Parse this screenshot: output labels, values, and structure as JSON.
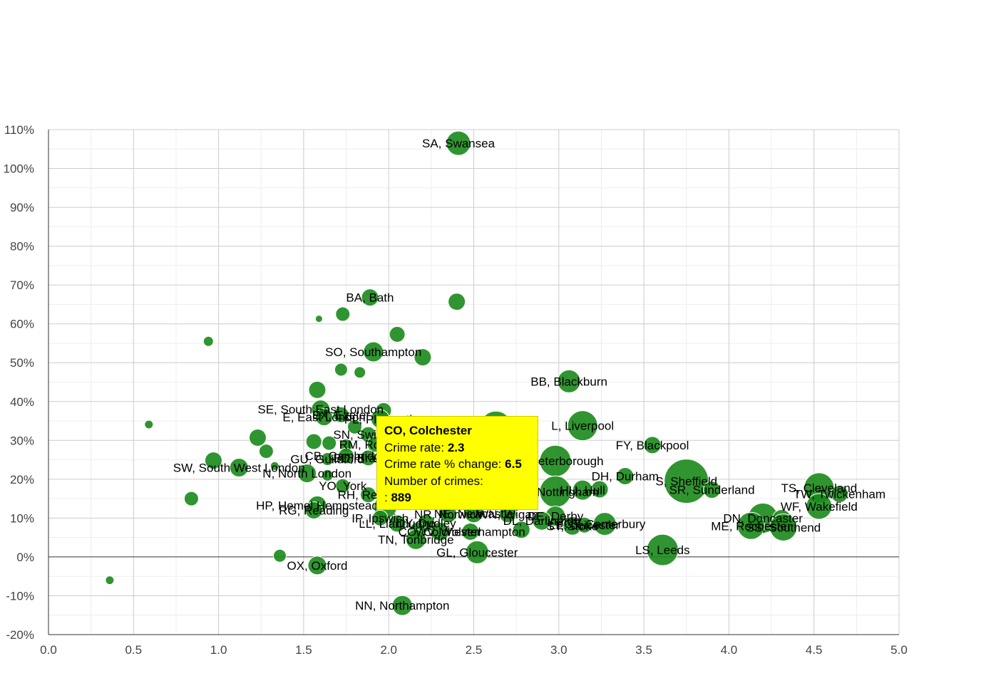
{
  "colors": {
    "bubble": "#1a8a1a",
    "tooltip_bg": "#ffff00",
    "grid": "#cccccc",
    "grid_minor": "#eeeeee",
    "zero_line": "#333333"
  },
  "tooltip": {
    "title": "CO, Colchester",
    "crime_rate_label": "Crime rate:",
    "crime_rate_value": "2.3",
    "change_label": "Crime rate % change:",
    "change_value": "6.5",
    "count_label": "Number of crimes:",
    "count_prefix": ":",
    "count_value": "889"
  },
  "chart_data": {
    "type": "scatter",
    "xlim": [
      0,
      5
    ],
    "ylim": [
      -20,
      110
    ],
    "x_ticks": [
      "0.0",
      "0.5",
      "1.0",
      "1.5",
      "2.0",
      "2.5",
      "3.0",
      "3.5",
      "4.0",
      "4.5",
      "5.0"
    ],
    "y_ticks": [
      "-20%",
      "-10%",
      "0%",
      "10%",
      "20%",
      "30%",
      "40%",
      "50%",
      "60%",
      "70%",
      "80%",
      "90%",
      "100%",
      "110%"
    ],
    "grid": true,
    "points": [
      {
        "label": "SA, Swansea",
        "x": 2.41,
        "y": 106.5,
        "r": 17
      },
      {
        "label": "BA, Bath",
        "x": 1.89,
        "y": 66.8,
        "r": 12
      },
      {
        "label": "",
        "x": 2.4,
        "y": 65.7,
        "r": 12
      },
      {
        "label": "",
        "x": 1.59,
        "y": 61.3,
        "r": 5
      },
      {
        "label": "",
        "x": 1.73,
        "y": 62.5,
        "r": 10
      },
      {
        "label": "",
        "x": 2.05,
        "y": 57.3,
        "r": 11
      },
      {
        "label": "",
        "x": 0.94,
        "y": 55.5,
        "r": 7
      },
      {
        "label": "SO, Southampton",
        "x": 1.91,
        "y": 52.8,
        "r": 14
      },
      {
        "label": "",
        "x": 2.2,
        "y": 51.4,
        "r": 12
      },
      {
        "label": "",
        "x": 1.72,
        "y": 48.2,
        "r": 9
      },
      {
        "label": "",
        "x": 1.83,
        "y": 47.5,
        "r": 8
      },
      {
        "label": "BB, Blackburn",
        "x": 3.06,
        "y": 45.2,
        "r": 16
      },
      {
        "label": "",
        "x": 1.58,
        "y": 43.0,
        "r": 12
      },
      {
        "label": "",
        "x": 1.97,
        "y": 37.7,
        "r": 11
      },
      {
        "label": "SE, South East London",
        "x": 1.6,
        "y": 38.0,
        "r": 13
      },
      {
        "label": "E, East London",
        "x": 1.62,
        "y": 36.0,
        "r": 12
      },
      {
        "label": "EX, Exeter",
        "x": 1.72,
        "y": 36.6,
        "r": 11
      },
      {
        "label": "PL, Plymouth",
        "x": 1.95,
        "y": 35.5,
        "r": 13
      },
      {
        "label": "",
        "x": 2.63,
        "y": 33.5,
        "r": 22
      },
      {
        "label": "L, Liverpool",
        "x": 3.14,
        "y": 33.8,
        "r": 21
      },
      {
        "label": "",
        "x": 0.59,
        "y": 34.1,
        "r": 6
      },
      {
        "label": "",
        "x": 1.8,
        "y": 33.5,
        "r": 10
      },
      {
        "label": "SN, Swindon",
        "x": 1.88,
        "y": 31.5,
        "r": 11
      },
      {
        "label": "",
        "x": 1.23,
        "y": 30.7,
        "r": 12
      },
      {
        "label": "",
        "x": 1.56,
        "y": 29.7,
        "r": 11
      },
      {
        "label": "",
        "x": 1.65,
        "y": 29.3,
        "r": 10
      },
      {
        "label": "RM, Romford",
        "x": 1.92,
        "y": 29.0,
        "r": 11
      },
      {
        "label": "",
        "x": 1.75,
        "y": 28.7,
        "r": 9
      },
      {
        "label": "FY, Blackpool",
        "x": 3.55,
        "y": 28.8,
        "r": 12
      },
      {
        "label": "",
        "x": 1.28,
        "y": 27.2,
        "r": 10
      },
      {
        "label": "GU, Guildford",
        "x": 1.64,
        "y": 25.2,
        "r": 9
      },
      {
        "label": "CB, Cambridge",
        "x": 1.75,
        "y": 26.0,
        "r": 11
      },
      {
        "label": "BD, Bradford",
        "x": 1.88,
        "y": 25.5,
        "r": 11
      },
      {
        "label": "",
        "x": 0.97,
        "y": 24.8,
        "r": 12
      },
      {
        "label": "PE, Peterborough",
        "x": 2.98,
        "y": 24.7,
        "r": 22
      },
      {
        "label": "SW, South West London",
        "x": 1.12,
        "y": 23.0,
        "r": 13
      },
      {
        "label": "",
        "x": 1.33,
        "y": 23.4,
        "r": 6
      },
      {
        "label": "N, North London",
        "x": 1.52,
        "y": 21.5,
        "r": 13
      },
      {
        "label": "",
        "x": 1.64,
        "y": 21.0,
        "r": 8
      },
      {
        "label": "DH, Durham",
        "x": 3.39,
        "y": 20.8,
        "r": 12
      },
      {
        "label": "S, Sheffield",
        "x": 3.75,
        "y": 19.5,
        "r": 31
      },
      {
        "label": "YO, York",
        "x": 1.73,
        "y": 18.3,
        "r": 10
      },
      {
        "label": "",
        "x": 3.24,
        "y": 17.4,
        "r": 12
      },
      {
        "label": "HU, Hull",
        "x": 3.14,
        "y": 17.2,
        "r": 14
      },
      {
        "label": "SR, Sunderland",
        "x": 3.9,
        "y": 17.3,
        "r": 12
      },
      {
        "label": "NG, Nottingham",
        "x": 2.98,
        "y": 16.8,
        "r": 22
      },
      {
        "label": "TS, Cleveland",
        "x": 4.53,
        "y": 17.8,
        "r": 21
      },
      {
        "label": "TW, Twickenham",
        "x": 4.65,
        "y": 16.2,
        "r": 12
      },
      {
        "label": "RH, Redhill",
        "x": 1.88,
        "y": 16.0,
        "r": 11
      },
      {
        "label": "",
        "x": 0.84,
        "y": 15.0,
        "r": 10
      },
      {
        "label": "WF, Wakefield",
        "x": 4.53,
        "y": 13.0,
        "r": 18
      },
      {
        "label": "HP, Hemel Hempstead",
        "x": 1.58,
        "y": 13.3,
        "r": 13
      },
      {
        "label": "RG, Reading",
        "x": 1.56,
        "y": 12.0,
        "r": 12
      },
      {
        "label": "",
        "x": 1.98,
        "y": 12.8,
        "r": 16
      },
      {
        "label": "NR, Norwich",
        "x": 2.35,
        "y": 11.0,
        "r": 12
      },
      {
        "label": "NE, Newcastle",
        "x": 2.5,
        "y": 11.2,
        "r": 13
      },
      {
        "label": "WN, Wigan",
        "x": 2.7,
        "y": 11.0,
        "r": 12
      },
      {
        "label": "DE, Derby",
        "x": 2.98,
        "y": 10.5,
        "r": 14
      },
      {
        "label": "IP, Ipswich",
        "x": 1.95,
        "y": 10.0,
        "r": 11
      },
      {
        "label": "DN, Doncaster",
        "x": 4.2,
        "y": 10.0,
        "r": 21
      },
      {
        "label": "",
        "x": 4.31,
        "y": 9.8,
        "r": 13
      },
      {
        "label": "DL, Darlington",
        "x": 2.9,
        "y": 9.3,
        "r": 13
      },
      {
        "label": "LL, Llandudno",
        "x": 2.05,
        "y": 8.6,
        "r": 12
      },
      {
        "label": "DY, Dudley",
        "x": 2.22,
        "y": 8.7,
        "r": 12
      },
      {
        "label": "ME, Rochester",
        "x": 4.13,
        "y": 8.0,
        "r": 19
      },
      {
        "label": "SS, Southend",
        "x": 4.32,
        "y": 7.6,
        "r": 19
      },
      {
        "label": "ST, Stoke",
        "x": 3.08,
        "y": 8.0,
        "r": 13
      },
      {
        "label": "LE, Leicester",
        "x": 3.15,
        "y": 8.2,
        "r": 11
      },
      {
        "label": "CT, Canterbury",
        "x": 3.27,
        "y": 8.5,
        "r": 16
      },
      {
        "label": "WV, Wolverhampton",
        "x": 2.48,
        "y": 6.5,
        "r": 12
      },
      {
        "label": "",
        "x": 2.78,
        "y": 7.0,
        "r": 12
      },
      {
        "label": "CO, Colchester",
        "x": 2.3,
        "y": 6.5,
        "r": 13
      },
      {
        "label": "",
        "x": 2.17,
        "y": 6.9,
        "r": 11
      },
      {
        "label": "TN, Tonbridge",
        "x": 2.16,
        "y": 4.5,
        "r": 14
      },
      {
        "label": "LS, Leeds",
        "x": 3.61,
        "y": 1.8,
        "r": 22
      },
      {
        "label": "GL, Gloucester",
        "x": 2.52,
        "y": 1.2,
        "r": 16
      },
      {
        "label": "",
        "x": 1.36,
        "y": 0.3,
        "r": 9
      },
      {
        "label": "OX, Oxford",
        "x": 1.58,
        "y": -2.2,
        "r": 13
      },
      {
        "label": "",
        "x": 0.36,
        "y": -6.0,
        "r": 6
      },
      {
        "label": "NN, Northampton",
        "x": 2.08,
        "y": -12.5,
        "r": 14
      }
    ]
  }
}
